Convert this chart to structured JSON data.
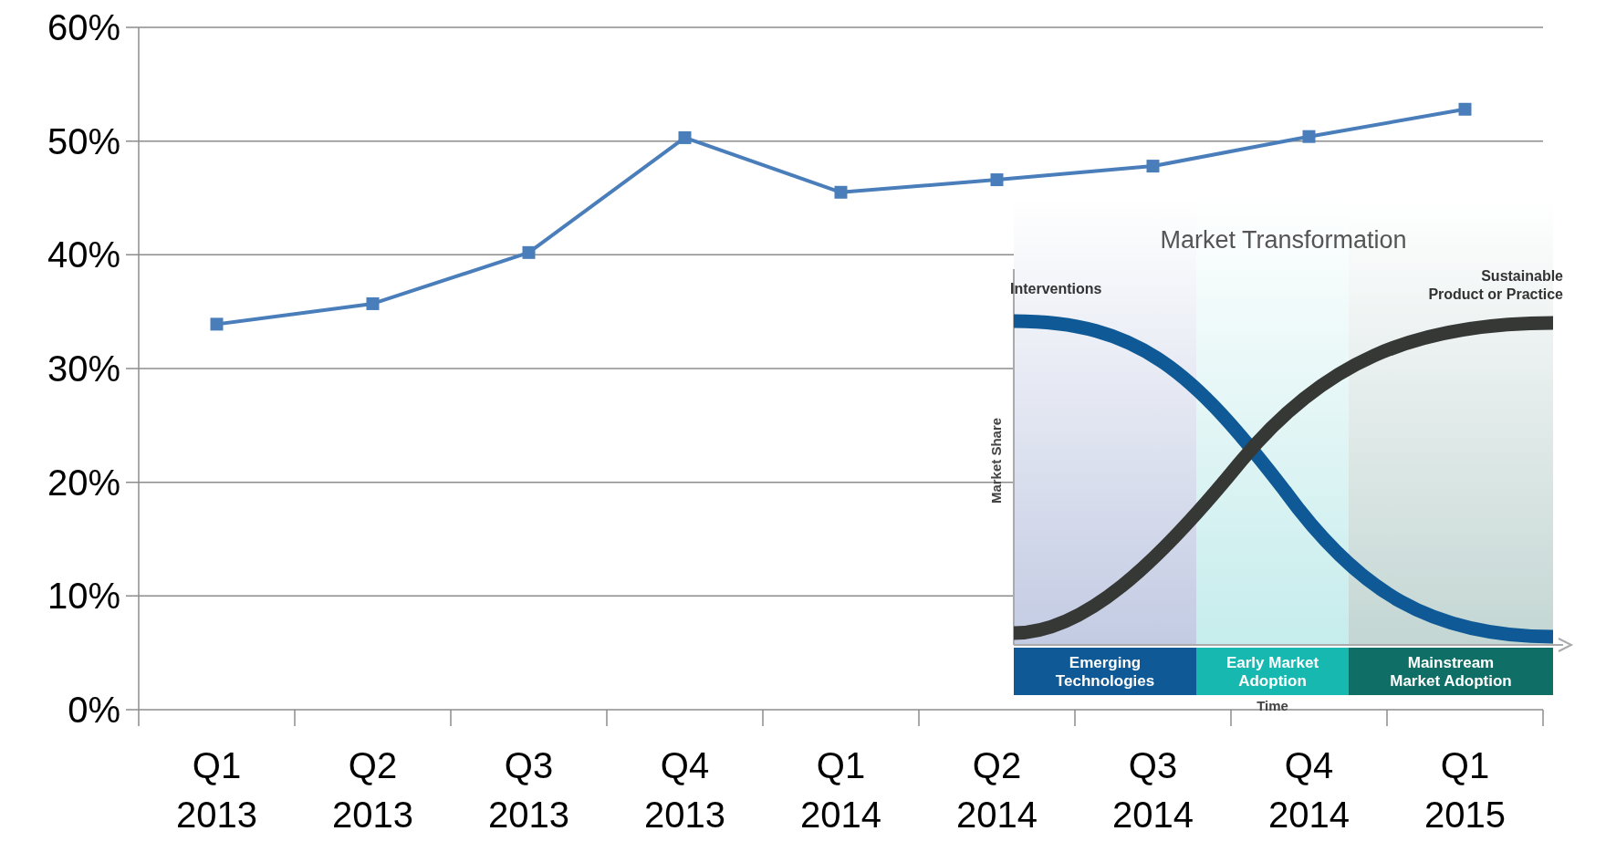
{
  "chart_data": {
    "type": "line",
    "categories": [
      "Q1 2013",
      "Q2 2013",
      "Q3 2013",
      "Q4 2013",
      "Q1 2014",
      "Q2 2014",
      "Q3 2014",
      "Q4 2014",
      "Q1 2015"
    ],
    "series": [
      {
        "color": "#4a7ebb",
        "values": [
          33.9,
          35.7,
          40.2,
          50.3,
          45.5,
          46.6,
          47.8,
          50.4,
          52.8
        ]
      }
    ],
    "ylim": [
      0,
      60
    ],
    "yticks": [
      {
        "value": 0,
        "label": "0%"
      },
      {
        "value": 10,
        "label": "10%"
      },
      {
        "value": 20,
        "label": "20%"
      },
      {
        "value": 30,
        "label": "30%"
      },
      {
        "value": 40,
        "label": "40%"
      },
      {
        "value": 50,
        "label": "50%"
      },
      {
        "value": 60,
        "label": "60%"
      }
    ],
    "grid": "y",
    "marker": "square",
    "line_style": "solid",
    "annotations": [
      "Market Transformation",
      "Interventions",
      "Sustainable Product or Practice",
      "Market Share",
      "Emerging Technologies",
      "Early Market Adoption",
      "Mainstream Market Adoption",
      "Time"
    ]
  }
}
